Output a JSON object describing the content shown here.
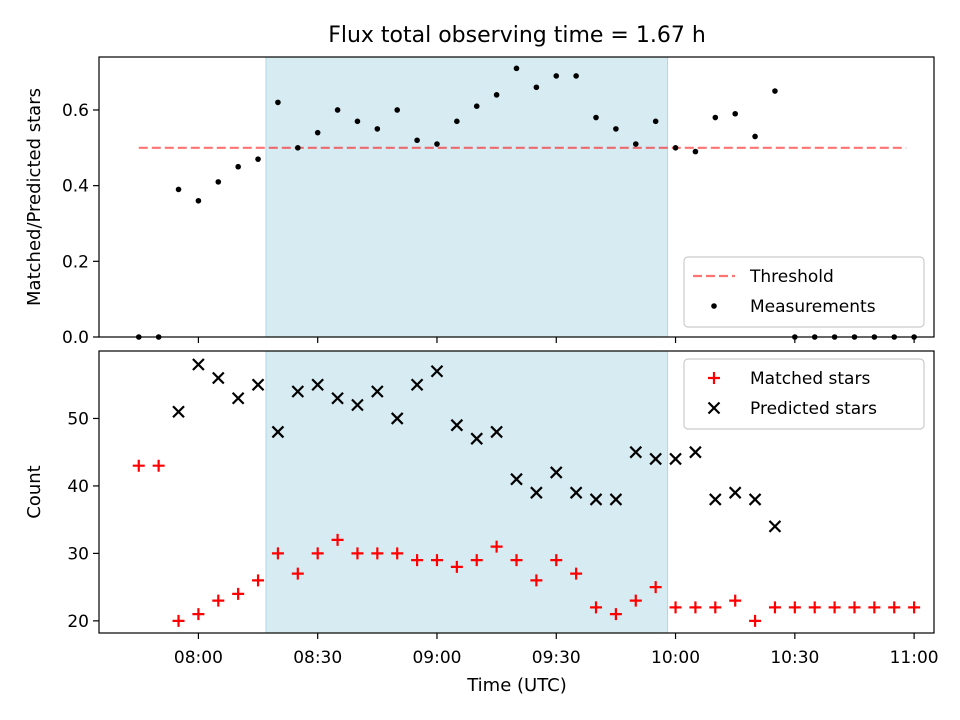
{
  "colors": {
    "shade": "#add8e6",
    "threshold": "#ff0000",
    "measurement": "#000000",
    "matched": "#ff0000",
    "predicted": "#000000"
  },
  "chart_data": [
    {
      "type": "scatter",
      "title": "Flux total observing time = 1.67 h",
      "xlabel": "",
      "ylabel": "Matched/Predicted stars",
      "ylim": [
        0,
        0.74
      ],
      "yticks": [
        "0.0",
        "0.2",
        "0.4",
        "0.6"
      ],
      "ytick_values": [
        0,
        0.2,
        0.4,
        0.6
      ],
      "shaded_region": {
        "start": "08:17",
        "end": "09:58"
      },
      "legend": {
        "position": "lower-right"
      },
      "threshold": {
        "name": "Threshold",
        "value": 0.5,
        "start": "07:45",
        "end": "10:58",
        "style": "dashed"
      },
      "series": [
        {
          "name": "Measurements",
          "marker": "dot",
          "x": [
            "07:45",
            "07:50",
            "07:55",
            "08:00",
            "08:05",
            "08:10",
            "08:15",
            "08:20",
            "08:25",
            "08:30",
            "08:35",
            "08:40",
            "08:45",
            "08:50",
            "08:55",
            "09:00",
            "09:05",
            "09:10",
            "09:15",
            "09:20",
            "09:25",
            "09:30",
            "09:35",
            "09:40",
            "09:45",
            "09:50",
            "09:55",
            "10:00",
            "10:05",
            "10:10",
            "10:15",
            "10:20",
            "10:25",
            "10:30",
            "10:35",
            "10:40",
            "10:45",
            "10:50",
            "10:55",
            "11:00"
          ],
          "y": [
            0.0,
            0.0,
            0.39,
            0.36,
            0.41,
            0.45,
            0.47,
            0.62,
            0.5,
            0.54,
            0.6,
            0.57,
            0.55,
            0.6,
            0.52,
            0.51,
            0.57,
            0.61,
            0.64,
            0.71,
            0.66,
            0.69,
            0.69,
            0.58,
            0.55,
            0.51,
            0.57,
            0.5,
            0.49,
            0.58,
            0.59,
            0.53,
            0.65,
            0.0,
            0.0,
            0.0,
            0.0,
            0.0,
            0.0,
            0.0
          ]
        }
      ]
    },
    {
      "type": "scatter",
      "title": "",
      "xlabel": "Time (UTC)",
      "ylabel": "Count",
      "ylim": [
        18.2,
        60
      ],
      "yticks": [
        "20",
        "30",
        "40",
        "50"
      ],
      "ytick_values": [
        20,
        30,
        40,
        50
      ],
      "xticks": [
        "08:00",
        "08:30",
        "09:00",
        "09:30",
        "10:00",
        "10:30",
        "11:00"
      ],
      "xlim": [
        "07:35",
        "11:05"
      ],
      "shaded_region": {
        "start": "08:17",
        "end": "09:58"
      },
      "legend": {
        "position": "upper-right"
      },
      "series": [
        {
          "name": "Matched stars",
          "marker": "plus",
          "x": [
            "07:45",
            "07:50",
            "07:55",
            "08:00",
            "08:05",
            "08:10",
            "08:15",
            "08:20",
            "08:25",
            "08:30",
            "08:35",
            "08:40",
            "08:45",
            "08:50",
            "08:55",
            "09:00",
            "09:05",
            "09:10",
            "09:15",
            "09:20",
            "09:25",
            "09:30",
            "09:35",
            "09:40",
            "09:45",
            "09:50",
            "09:55",
            "10:00",
            "10:05",
            "10:10",
            "10:15",
            "10:20",
            "10:25",
            "10:30",
            "10:35",
            "10:40",
            "10:45",
            "10:50",
            "10:55",
            "11:00"
          ],
          "y": [
            43,
            43,
            20,
            21,
            23,
            24,
            26,
            30,
            27,
            30,
            32,
            30,
            30,
            30,
            29,
            29,
            28,
            29,
            31,
            29,
            26,
            29,
            27,
            22,
            21,
            23,
            25,
            22,
            22,
            22,
            23,
            20,
            22,
            22,
            22,
            22,
            22,
            22,
            22,
            22
          ]
        },
        {
          "name": "Predicted stars",
          "marker": "x",
          "x": [
            "07:55",
            "08:00",
            "08:05",
            "08:10",
            "08:15",
            "08:20",
            "08:25",
            "08:30",
            "08:35",
            "08:40",
            "08:45",
            "08:50",
            "08:55",
            "09:00",
            "09:05",
            "09:10",
            "09:15",
            "09:20",
            "09:25",
            "09:30",
            "09:35",
            "09:40",
            "09:45",
            "09:50",
            "09:55",
            "10:00",
            "10:05",
            "10:10",
            "10:15",
            "10:20",
            "10:25"
          ],
          "y": [
            51,
            58,
            56,
            53,
            55,
            48,
            54,
            55,
            53,
            52,
            54,
            50,
            55,
            57,
            49,
            47,
            48,
            41,
            39,
            42,
            39,
            38,
            38,
            45,
            44,
            44,
            45,
            38,
            39,
            38,
            34
          ]
        }
      ]
    }
  ]
}
